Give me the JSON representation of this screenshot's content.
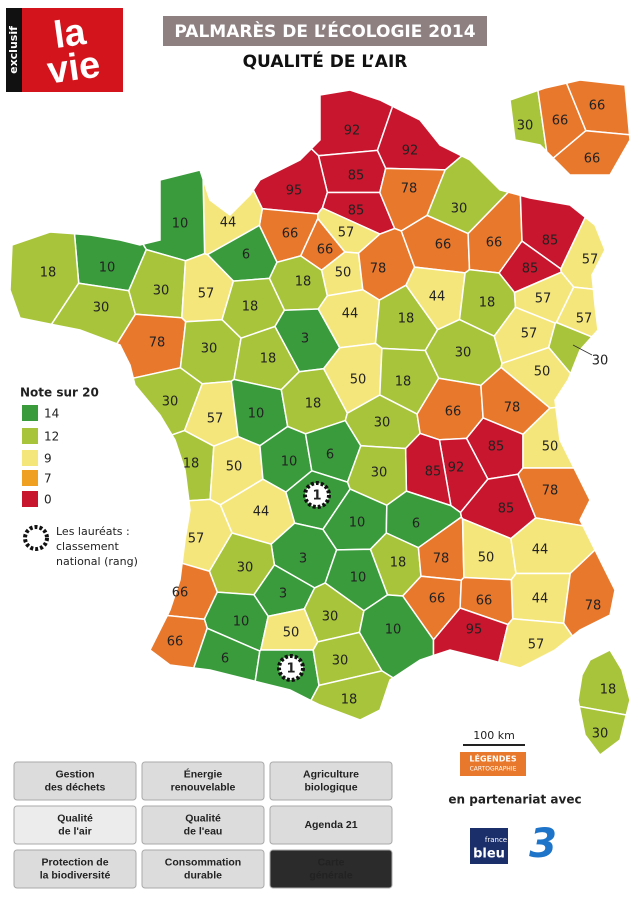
{
  "header": {
    "logo": {
      "badge": "exclusif",
      "top": "la",
      "bottom": "vie"
    },
    "title": "PALMARÈS DE L’ÉCOLOGIE 2014",
    "subtitle": "QUALITÉ DE L’AIR"
  },
  "legend": {
    "title": "Note sur 20",
    "classes": [
      {
        "value": 14,
        "color": "#3a9b3c"
      },
      {
        "value": 12,
        "color": "#a8c43a"
      },
      {
        "value": 9,
        "color": "#f5e67c"
      },
      {
        "value": 7,
        "color": "#f0a020"
      },
      {
        "value": 0,
        "color": "#c8162e"
      }
    ],
    "laureates": [
      "Les lauréats :",
      "classement",
      "national (rang)"
    ]
  },
  "map": {
    "departments": [
      {
        "rank": 92,
        "color": "#c8162e"
      },
      {
        "rank": 92,
        "color": "#c8162e"
      },
      {
        "rank": 85,
        "color": "#c8162e"
      },
      {
        "rank": 95,
        "color": "#c8162e"
      },
      {
        "rank": 85,
        "color": "#c8162e"
      },
      {
        "rank": 78,
        "color": "#e8782c"
      },
      {
        "rank": 30,
        "color": "#a8c43a"
      },
      {
        "rank": 66,
        "color": "#e8782c"
      },
      {
        "rank": 44,
        "color": "#f5e67c"
      },
      {
        "rank": 10,
        "color": "#3a9b3c"
      },
      {
        "rank": 57,
        "color": "#f5e67c"
      },
      {
        "rank": 66,
        "color": "#e8782c"
      },
      {
        "rank": 50,
        "color": "#f5e67c"
      },
      {
        "rank": 78,
        "color": "#e8782c"
      },
      {
        "rank": 66,
        "color": "#e8782c"
      },
      {
        "rank": 66,
        "color": "#e8782c"
      },
      {
        "rank": 85,
        "color": "#c8162e"
      },
      {
        "rank": 85,
        "color": "#c8162e"
      },
      {
        "rank": 57,
        "color": "#f5e67c"
      },
      {
        "rank": 6,
        "color": "#3a9b3c"
      },
      {
        "rank": 18,
        "color": "#a8c43a"
      },
      {
        "rank": 10,
        "color": "#3a9b3c"
      },
      {
        "rank": 18,
        "color": "#a8c43a"
      },
      {
        "rank": 30,
        "color": "#a8c43a"
      },
      {
        "rank": 30,
        "color": "#a8c43a"
      },
      {
        "rank": 57,
        "color": "#f5e67c"
      },
      {
        "rank": 18,
        "color": "#a8c43a"
      },
      {
        "rank": 3,
        "color": "#3a9b3c"
      },
      {
        "rank": 44,
        "color": "#f5e67c"
      },
      {
        "rank": 18,
        "color": "#a8c43a"
      },
      {
        "rank": 44,
        "color": "#f5e67c"
      },
      {
        "rank": 18,
        "color": "#a8c43a"
      },
      {
        "rank": 57,
        "color": "#f5e67c"
      },
      {
        "rank": 57,
        "color": "#f5e67c"
      },
      {
        "rank": 57,
        "color": "#f5e67c"
      },
      {
        "rank": 30,
        "color": "#a8c43a"
      },
      {
        "rank": 78,
        "color": "#e8782c"
      },
      {
        "rank": 30,
        "color": "#a8c43a"
      },
      {
        "rank": 18,
        "color": "#a8c43a"
      },
      {
        "rank": 50,
        "color": "#f5e67c"
      },
      {
        "rank": 18,
        "color": "#a8c43a"
      },
      {
        "rank": 30,
        "color": "#a8c43a"
      },
      {
        "rank": 50,
        "color": "#f5e67c"
      },
      {
        "rank": 30,
        "color": "#a8c43a"
      },
      {
        "rank": 57,
        "color": "#f5e67c"
      },
      {
        "rank": 10,
        "color": "#3a9b3c"
      },
      {
        "rank": 18,
        "color": "#a8c43a"
      },
      {
        "rank": 30,
        "color": "#a8c43a"
      },
      {
        "rank": 66,
        "color": "#e8782c"
      },
      {
        "rank": 78,
        "color": "#e8782c"
      },
      {
        "rank": 85,
        "color": "#c8162e"
      },
      {
        "rank": 92,
        "color": "#c8162e"
      },
      {
        "rank": 85,
        "color": "#c8162e"
      },
      {
        "rank": 50,
        "color": "#f5e67c"
      },
      {
        "rank": 18,
        "color": "#a8c43a"
      },
      {
        "rank": 50,
        "color": "#f5e67c"
      },
      {
        "rank": 10,
        "color": "#3a9b3c"
      },
      {
        "rank": 6,
        "color": "#3a9b3c"
      },
      {
        "rank": 30,
        "color": "#a8c43a"
      },
      {
        "rank": 78,
        "color": "#e8782c"
      },
      {
        "rank": 85,
        "color": "#c8162e"
      },
      {
        "rank": 44,
        "color": "#f5e67c"
      },
      {
        "rank": 1,
        "color": "#3a9b3c"
      },
      {
        "rank": 10,
        "color": "#3a9b3c"
      },
      {
        "rank": 6,
        "color": "#3a9b3c"
      },
      {
        "rank": 57,
        "color": "#f5e67c"
      },
      {
        "rank": 3,
        "color": "#3a9b3c"
      },
      {
        "rank": 18,
        "color": "#a8c43a"
      },
      {
        "rank": 78,
        "color": "#e8782c"
      },
      {
        "rank": 50,
        "color": "#f5e67c"
      },
      {
        "rank": 44,
        "color": "#f5e67c"
      },
      {
        "rank": 30,
        "color": "#a8c43a"
      },
      {
        "rank": 10,
        "color": "#3a9b3c"
      },
      {
        "rank": 66,
        "color": "#e8782c"
      },
      {
        "rank": 3,
        "color": "#3a9b3c"
      },
      {
        "rank": 44,
        "color": "#f5e67c"
      },
      {
        "rank": 78,
        "color": "#e8782c"
      },
      {
        "rank": 30,
        "color": "#a8c43a"
      },
      {
        "rank": 66,
        "color": "#e8782c"
      },
      {
        "rank": 66,
        "color": "#e8782c"
      },
      {
        "rank": 10,
        "color": "#3a9b3c"
      },
      {
        "rank": 10,
        "color": "#3a9b3c"
      },
      {
        "rank": 95,
        "color": "#c8162e"
      },
      {
        "rank": 57,
        "color": "#f5e67c"
      },
      {
        "rank": 66,
        "color": "#e8782c"
      },
      {
        "rank": 50,
        "color": "#f5e67c"
      },
      {
        "rank": 6,
        "color": "#3a9b3c"
      },
      {
        "rank": 1,
        "color": "#3a9b3c"
      },
      {
        "rank": 30,
        "color": "#a8c43a"
      },
      {
        "rank": 18,
        "color": "#a8c43a"
      },
      {
        "rank": 30,
        "color": "#a8c43a"
      },
      {
        "rank": 66,
        "color": "#e8782c"
      },
      {
        "rank": 66,
        "color": "#e8782c"
      },
      {
        "rank": 66,
        "color": "#e8782c"
      },
      {
        "rank": 18,
        "color": "#a8c43a"
      },
      {
        "rank": 30,
        "color": "#a8c43a"
      }
    ]
  },
  "scale": "100 km",
  "credit": [
    "LÉGENDES",
    "CARTOGRAPHIE"
  ],
  "partners": {
    "label": "en partenariat avec",
    "bleu": [
      "france",
      "bleu"
    ],
    "three": "3"
  },
  "menu": [
    [
      "Gestion",
      "des déchets"
    ],
    [
      "Énergie",
      "renouvelable"
    ],
    [
      "Agriculture",
      "biologique"
    ],
    [
      "Qualité",
      "de l'air"
    ],
    [
      "Qualité",
      "de l'eau"
    ],
    [
      "Agenda 21"
    ],
    [
      "Protection de",
      "la biodiversité"
    ],
    [
      "Consommation",
      "durable"
    ],
    [
      "Carte",
      "générale"
    ]
  ]
}
